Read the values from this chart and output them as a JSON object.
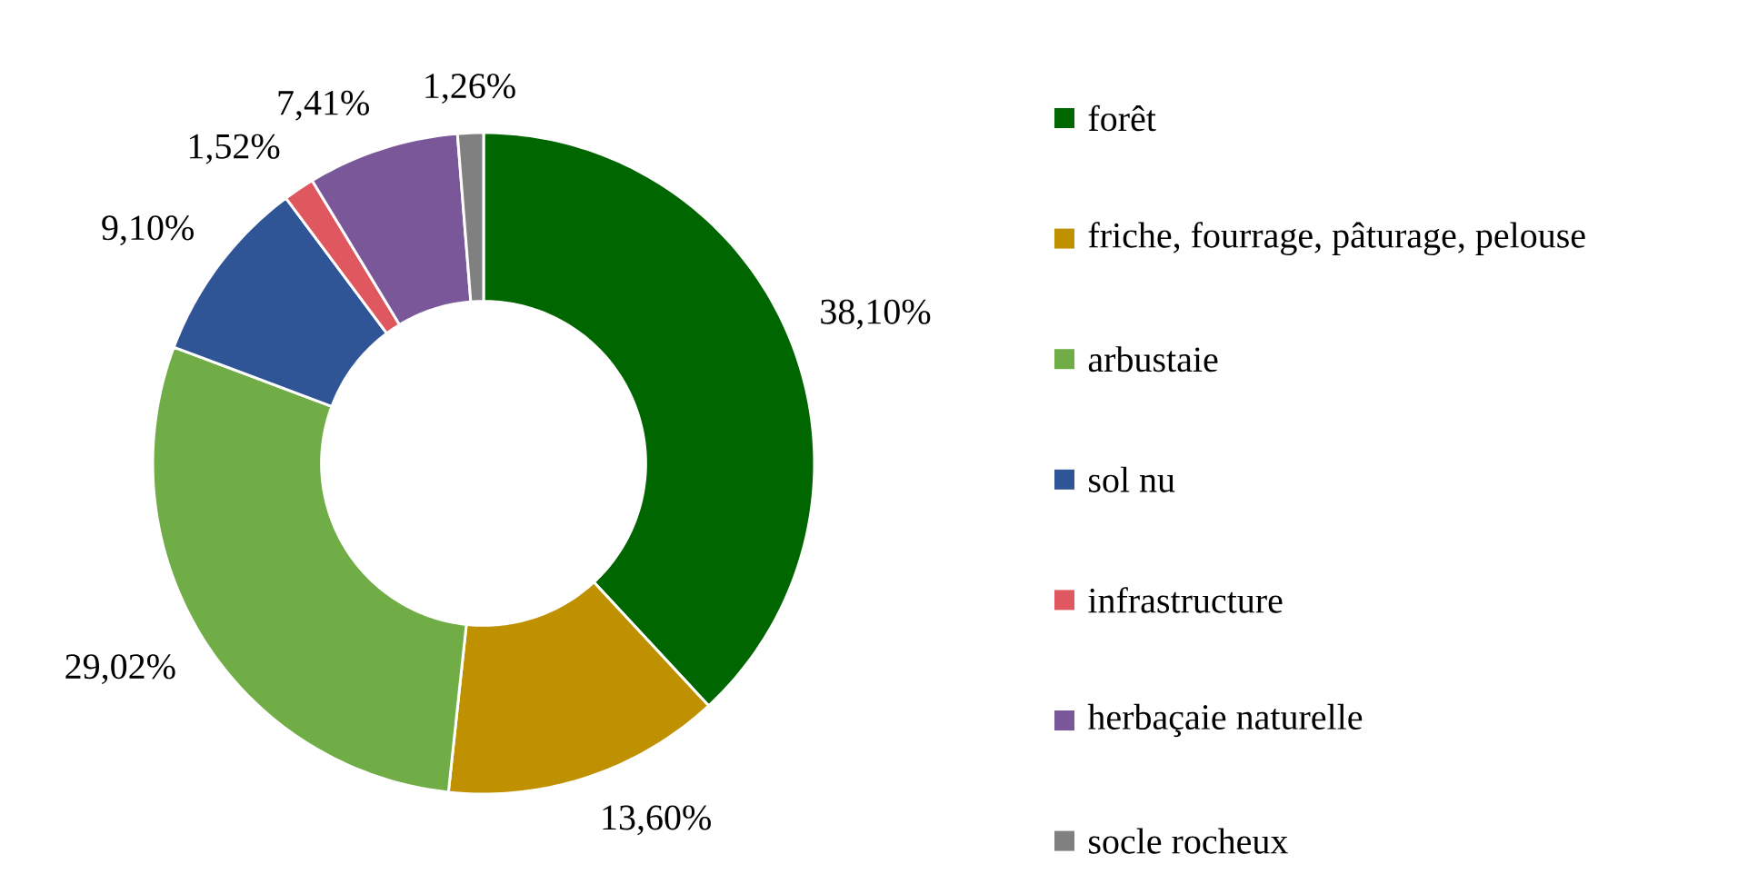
{
  "chart_data": {
    "type": "donut",
    "categories": [
      "forêt",
      "friche, fourrage, pâturage, pelouse",
      "arbustaie",
      "sol nu",
      "infrastructure",
      "herbaçaie naturelle",
      "socle rocheux"
    ],
    "values": [
      38.1,
      13.6,
      29.02,
      9.1,
      1.52,
      7.41,
      1.26
    ],
    "value_labels": [
      "38,10%",
      "13,60%",
      "29,02%",
      "9,10%",
      "1,52%",
      "7,41%",
      "1,26%"
    ],
    "colors": [
      "#006600",
      "#bf9000",
      "#70ad47",
      "#2f5597",
      "#e0585f",
      "#7a5799",
      "#808080"
    ],
    "legend": "right"
  }
}
